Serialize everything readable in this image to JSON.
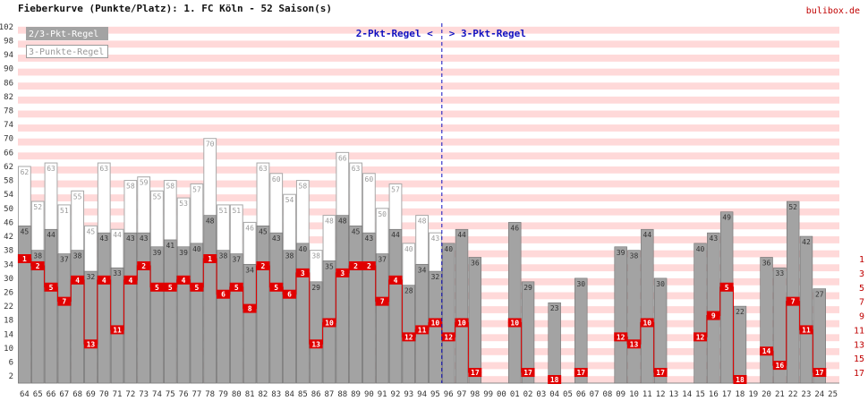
{
  "header": {
    "title": "Fieberkurve (Punkte/Platz): 1. FC Köln - 52 Saison(s)",
    "brand": "bulibox.de"
  },
  "legend": {
    "item1": "2/3-Pkt-Regel",
    "item2": "3-Punkte-Regel"
  },
  "era": {
    "left": "2-Pkt-Regel <",
    "right": "> 3-Pkt-Regel",
    "switch_after": "95"
  },
  "colors": {
    "bar": "#a3a3a3",
    "bar_edge": "#6e6e6e",
    "stripe": "#ffd9d9",
    "place": "#e00000",
    "era_line": "#1010c0"
  },
  "chart_data": {
    "type": "bar",
    "seasons": [
      "64",
      "65",
      "66",
      "67",
      "68",
      "69",
      "70",
      "71",
      "72",
      "73",
      "74",
      "75",
      "76",
      "77",
      "78",
      "79",
      "80",
      "81",
      "82",
      "83",
      "84",
      "85",
      "86",
      "87",
      "88",
      "89",
      "90",
      "91",
      "92",
      "93",
      "94",
      "95",
      "96",
      "97",
      "98",
      "99",
      "00",
      "01",
      "02",
      "03",
      "04",
      "05",
      "06",
      "07",
      "08",
      "09",
      "10",
      "11",
      "12",
      "13",
      "14",
      "15",
      "16",
      "17",
      "18",
      "19",
      "20",
      "21",
      "22",
      "23",
      "24",
      "25"
    ],
    "points": [
      45,
      38,
      44,
      37,
      38,
      32,
      43,
      33,
      43,
      43,
      39,
      41,
      39,
      40,
      48,
      38,
      37,
      34,
      45,
      43,
      38,
      40,
      29,
      35,
      48,
      45,
      43,
      37,
      44,
      28,
      34,
      32,
      40,
      44,
      36,
      null,
      null,
      46,
      29,
      null,
      23,
      null,
      30,
      null,
      null,
      39,
      38,
      44,
      30,
      null,
      null,
      40,
      43,
      49,
      22,
      null,
      36,
      33,
      52,
      42,
      27,
      null
    ],
    "points3": [
      62,
      52,
      63,
      51,
      55,
      45,
      63,
      44,
      58,
      59,
      55,
      58,
      53,
      57,
      70,
      51,
      51,
      46,
      63,
      60,
      54,
      58,
      38,
      48,
      66,
      63,
      60,
      50,
      57,
      40,
      48,
      43,
      null,
      null,
      null,
      null,
      null,
      null,
      null,
      null,
      null,
      null,
      null,
      null,
      null,
      null,
      null,
      null,
      null,
      null,
      null,
      null,
      null,
      null,
      null,
      null,
      null,
      null,
      null,
      null,
      null,
      null
    ],
    "place": [
      1,
      2,
      5,
      7,
      4,
      13,
      4,
      11,
      4,
      2,
      5,
      5,
      4,
      5,
      1,
      6,
      5,
      8,
      2,
      5,
      6,
      3,
      13,
      10,
      3,
      2,
      2,
      7,
      4,
      12,
      11,
      10,
      12,
      10,
      17,
      null,
      null,
      10,
      17,
      null,
      18,
      null,
      17,
      null,
      null,
      12,
      13,
      10,
      17,
      null,
      null,
      12,
      9,
      5,
      18,
      null,
      14,
      16,
      7,
      11,
      17,
      null
    ],
    "y_ticks": [
      2,
      6,
      10,
      14,
      18,
      22,
      26,
      30,
      34,
      38,
      42,
      46,
      50,
      54,
      58,
      62,
      66,
      70,
      74,
      78,
      82,
      86,
      90,
      94,
      98,
      102
    ],
    "place_ticks": [
      1,
      3,
      5,
      7,
      9,
      11,
      13,
      15,
      17
    ],
    "ylim": [
      0,
      104
    ],
    "place_range": [
      1,
      18
    ]
  }
}
